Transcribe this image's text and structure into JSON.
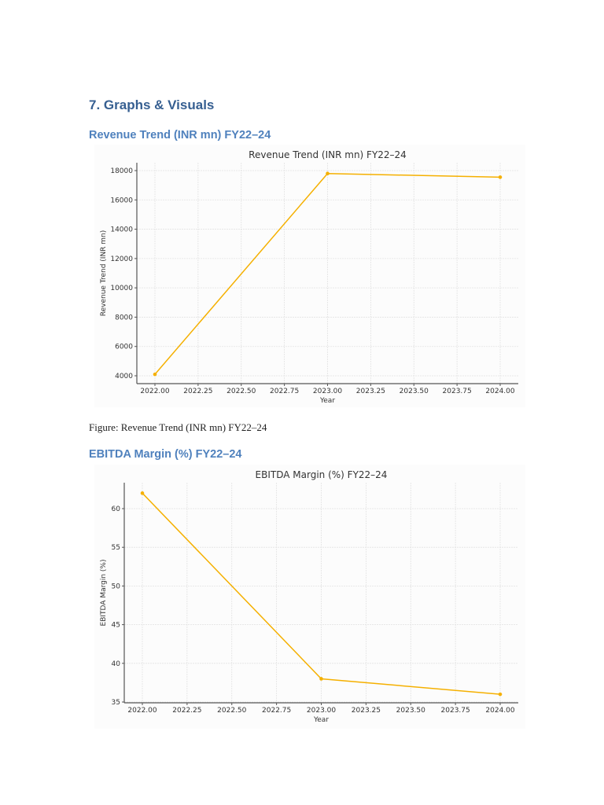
{
  "document": {
    "section_heading": "7. Graphs & Visuals",
    "revenue_heading": "Revenue Trend (INR mn) FY22–24",
    "revenue_caption": "Figure: Revenue Trend (INR mn) FY22–24",
    "ebitda_heading": "EBITDA Margin (%) FY22–24"
  },
  "colors": {
    "heading": "#365f91",
    "subheading": "#4f81bd",
    "line": "#f5b000"
  },
  "chart_data": [
    {
      "type": "line",
      "title": "Revenue Trend (INR mn) FY22–24",
      "xlabel": "Year",
      "ylabel": "Revenue Trend (INR mn)",
      "x": [
        2022,
        2023,
        2024
      ],
      "series": [
        {
          "name": "Revenue",
          "values": [
            4100,
            17800,
            17550
          ]
        }
      ],
      "xticks": [
        "2022.00",
        "2022.25",
        "2022.50",
        "2022.75",
        "2023.00",
        "2023.25",
        "2023.50",
        "2023.75",
        "2024.00"
      ],
      "yticks": [
        "4000",
        "6000",
        "8000",
        "10000",
        "12000",
        "14000",
        "16000",
        "18000"
      ],
      "ylim": [
        3500,
        18500
      ],
      "grid": true
    },
    {
      "type": "line",
      "title": "EBITDA Margin (%) FY22–24",
      "xlabel": "Year",
      "ylabel": "EBITDA Margin (%)",
      "x": [
        2022,
        2023,
        2024
      ],
      "series": [
        {
          "name": "EBITDA Margin",
          "values": [
            62,
            38,
            36
          ]
        }
      ],
      "xticks": [
        "2022.00",
        "2022.25",
        "2022.50",
        "2022.75",
        "2023.00",
        "2023.25",
        "2023.50",
        "2023.75",
        "2024.00"
      ],
      "yticks": [
        "35",
        "40",
        "45",
        "50",
        "55",
        "60"
      ],
      "ylim": [
        35,
        63
      ],
      "grid": true
    }
  ]
}
